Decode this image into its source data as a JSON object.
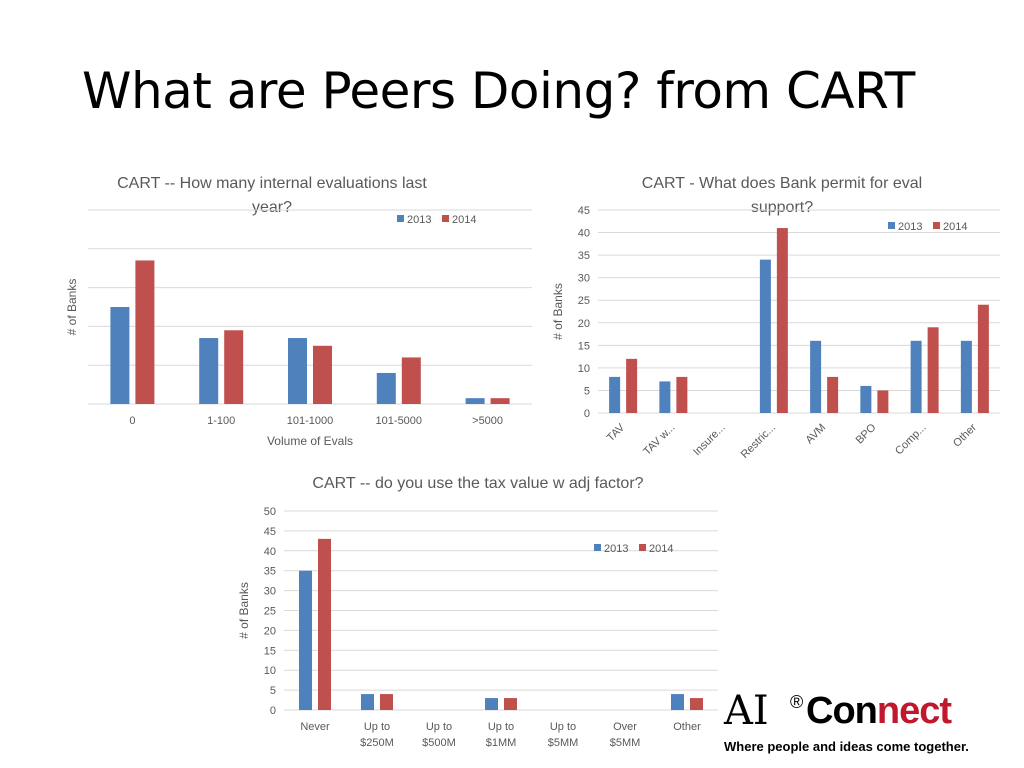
{
  "slide": {
    "title": "What are Peers Doing? from CART"
  },
  "colors": {
    "2013": "#4f81bd",
    "2014": "#c0504d",
    "grid": "#d9d9d9",
    "text": "#595959",
    "brand_red": "#c0182d"
  },
  "logo": {
    "ai": "AI",
    "reg": "®",
    "con": "Con",
    "nect": "nect",
    "tagline": "Where people and ideas come together."
  },
  "chart_data": [
    {
      "type": "bar",
      "title_lines": [
        "CART -- How many internal evaluations last",
        "year?"
      ],
      "xlabel": "Volume of Evals",
      "ylabel": "# of Banks",
      "categories": [
        "0",
        "1-100",
        "101-1000",
        "101-5000",
        ">5000"
      ],
      "series": [
        {
          "name": "2013",
          "values": [
            25,
            17,
            17,
            8,
            1.5
          ]
        },
        {
          "name": "2014",
          "values": [
            37,
            19,
            15,
            12,
            1.5
          ]
        }
      ],
      "ylim": [
        0,
        50
      ],
      "y_ticks_labeled": false,
      "grid": true,
      "legend": "top-right"
    },
    {
      "type": "bar",
      "title_lines": [
        "CART - What does Bank permit for eval",
        "support?"
      ],
      "ylabel": "# of Banks",
      "categories": [
        "TAV",
        "TAV w...",
        "Insure...",
        "Restric...",
        "AVM",
        "BPO",
        "Comp...",
        "Other"
      ],
      "series": [
        {
          "name": "2013",
          "values": [
            8,
            7,
            0,
            34,
            16,
            6,
            16,
            16
          ]
        },
        {
          "name": "2014",
          "values": [
            12,
            8,
            0,
            41,
            8,
            5,
            19,
            24
          ]
        }
      ],
      "ylim": [
        0,
        45
      ],
      "y_ticks": [
        0,
        5,
        10,
        15,
        20,
        25,
        30,
        35,
        40,
        45
      ],
      "grid": true,
      "legend": "top-right"
    },
    {
      "type": "bar",
      "title_lines": [
        "CART -- do you use the tax value w adj factor?"
      ],
      "ylabel": "# of Banks",
      "categories": [
        [
          "Never"
        ],
        [
          "Up to",
          "$250M"
        ],
        [
          "Up to",
          "$500M"
        ],
        [
          "Up to",
          "$1MM"
        ],
        [
          "Up to",
          "$5MM"
        ],
        [
          "Over",
          "$5MM"
        ],
        [
          "Other"
        ]
      ],
      "series": [
        {
          "name": "2013",
          "values": [
            35,
            4,
            0,
            3,
            0,
            0,
            4
          ]
        },
        {
          "name": "2014",
          "values": [
            43,
            4,
            0,
            3,
            0,
            0,
            3
          ]
        }
      ],
      "ylim": [
        0,
        50
      ],
      "y_ticks": [
        0,
        5,
        10,
        15,
        20,
        25,
        30,
        35,
        40,
        45,
        50
      ],
      "grid": true,
      "legend": "top-right"
    }
  ]
}
